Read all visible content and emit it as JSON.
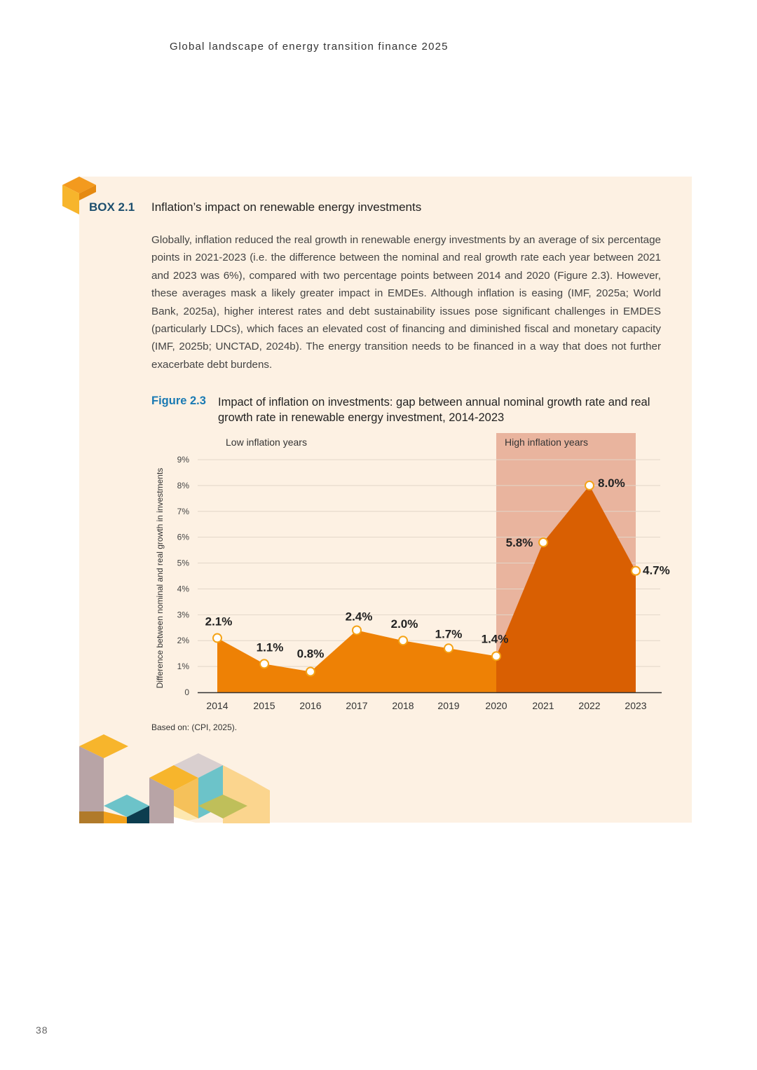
{
  "running_head": "Global landscape of energy transition finance 2025",
  "page_number": "38",
  "box": {
    "label": "BOX 2.1",
    "title": "Inflation’s impact on renewable energy investments",
    "body": "Globally, inflation reduced the real growth in renewable energy investments by an average of six percentage points in 2021-2023 (i.e. the difference between the nominal and real growth rate each year between 2021 and 2023 was 6%), compared with two percentage points between 2014 and 2020 (Figure 2.3). However, these averages mask a likely greater impact in EMDEs. Although inflation is easing (IMF, 2025a; World Bank, 2025a), higher interest rates and debt sustainability issues pose significant challenges in EMDES (particularly LDCs), which faces an elevated cost of financing and diminished fiscal and monetary capacity (IMF, 2025b; UNCTAD, 2024b). The energy transition needs to be financed in a way that does not further exacerbate debt burdens."
  },
  "figure": {
    "label": "Figure 2.3",
    "title": "Impact of inflation on investments: gap between annual nominal growth rate and real growth rate in renewable energy investment, 2014-2023",
    "source": "Based on: (CPI, 2025)."
  },
  "chart_data": {
    "type": "area",
    "title": "Impact of inflation on investments: gap between annual nominal growth rate and real growth rate in renewable energy investment, 2014-2023",
    "ylabel": "Difference between nominal and real growth in investments",
    "xlabel": "",
    "x": [
      "2014",
      "2015",
      "2016",
      "2017",
      "2018",
      "2019",
      "2020",
      "2021",
      "2022",
      "2023"
    ],
    "values": [
      2.1,
      1.1,
      0.8,
      2.4,
      2.0,
      1.7,
      1.4,
      5.8,
      8.0,
      4.7
    ],
    "data_labels": [
      "2.1%",
      "1.1%",
      "0.8%",
      "2.4%",
      "2.0%",
      "1.7%",
      "1.4%",
      "5.8%",
      "8.0%",
      "4.7%"
    ],
    "ylim": [
      0,
      9
    ],
    "y_ticks": [
      {
        "value": 0,
        "label": "0"
      },
      {
        "value": 1,
        "label": "1%"
      },
      {
        "value": 2,
        "label": "2%"
      },
      {
        "value": 3,
        "label": "3%"
      },
      {
        "value": 4,
        "label": "4%"
      },
      {
        "value": 5,
        "label": "5%"
      },
      {
        "value": 6,
        "label": "6%"
      },
      {
        "value": 7,
        "label": "7%"
      },
      {
        "value": 8,
        "label": "8%"
      },
      {
        "value": 9,
        "label": "9%"
      }
    ],
    "grid": true,
    "regions": [
      {
        "label": "Low inflation years",
        "from": "2014",
        "to": "2020"
      },
      {
        "label": "High inflation years",
        "from": "2020",
        "to": "2023"
      }
    ],
    "colors": {
      "low_area": "#ee8105",
      "high_area": "#d95f02",
      "high_band": "#e9b49e",
      "marker_stroke": "#f5a316",
      "grid": "#e2d6c8"
    }
  }
}
